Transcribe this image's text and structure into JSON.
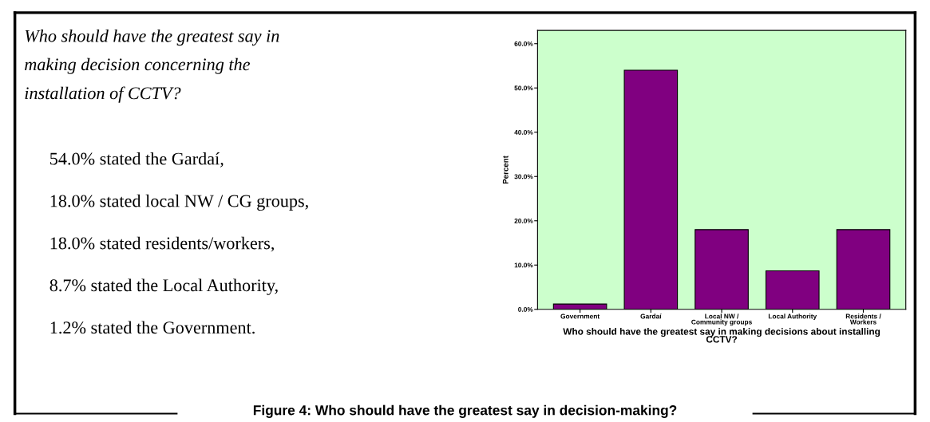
{
  "chart_data": {
    "type": "bar",
    "categories": [
      "Government",
      "Gardaí",
      "Local NW /\nCommunity groups",
      "Local Authority",
      "Residents /\nWorkers"
    ],
    "values": [
      1.2,
      54.0,
      18.0,
      8.7,
      18.0
    ],
    "color": "#800080",
    "xlabel": "Who should have the greatest say in making decisions about installing\nCCTV?",
    "ylabel": "Percent",
    "ylim": [
      0,
      63
    ],
    "yticks": [
      {
        "value": 0,
        "label": "0.0%"
      },
      {
        "value": 10,
        "label": "10.0%"
      },
      {
        "value": 20,
        "label": "20.0%"
      },
      {
        "value": 30,
        "label": "30.0%"
      },
      {
        "value": 40,
        "label": "40.0%"
      },
      {
        "value": 50,
        "label": "50.0%"
      },
      {
        "value": 60,
        "label": "60.0%"
      }
    ],
    "grid": false,
    "annotations": [
      "Who should have the greatest say in\nmaking decision concerning the\ninstallation of CCTV?",
      "54.0% stated the Gardaí,",
      "18.0% stated local NW / CG groups,",
      "18.0% stated residents/workers,",
      "8.7% stated the Local Authority,",
      "1.2% stated the Government.",
      "Figure 4: Who should have the greatest say in decision-making?"
    ]
  }
}
